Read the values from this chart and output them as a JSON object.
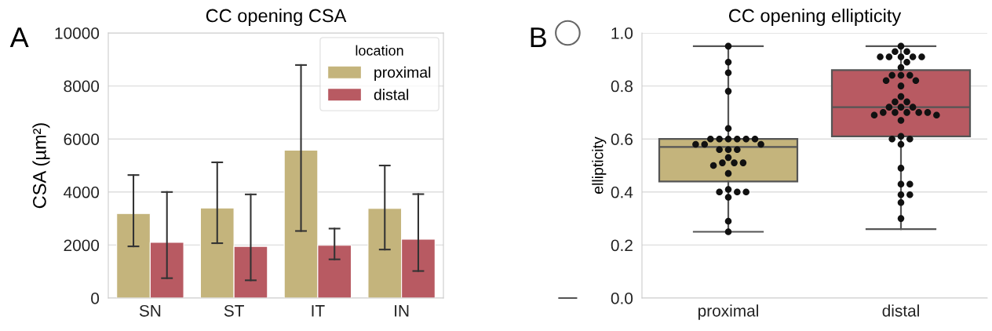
{
  "chart_data": [
    {
      "type": "bar",
      "title": "CC opening CSA",
      "ylabel": "CSA (µm²)",
      "categories": [
        "SN",
        "ST",
        "IT",
        "IN"
      ],
      "series": [
        {
          "name": "proximal",
          "color": "#c4b47c",
          "values": [
            3190,
            3400,
            5580,
            3380
          ],
          "errors": [
            [
              1950,
              4640
            ],
            [
              2070,
              5120
            ],
            [
              2530,
              8790
            ],
            [
              1830,
              5000
            ]
          ]
        },
        {
          "name": "distal",
          "color": "#b85a62",
          "values": [
            2100,
            1950,
            1990,
            2220
          ],
          "errors": [
            [
              750,
              4000
            ],
            [
              670,
              3910
            ],
            [
              1460,
              2620
            ],
            [
              1020,
              3920
            ]
          ]
        }
      ],
      "ylim": [
        0,
        10000
      ],
      "yticks": [
        0,
        2000,
        4000,
        6000,
        8000,
        10000
      ],
      "grid": "y",
      "legend": "top right",
      "legend_title": "location",
      "annotations": [
        "A"
      ]
    },
    {
      "type": "box",
      "title": "CC opening ellipticity",
      "ylabel": "ellipticity",
      "categories": [
        "proximal",
        "distal"
      ],
      "colors": [
        "#c4b47c",
        "#b85a62"
      ],
      "boxes": [
        {
          "low": 0.25,
          "q1": 0.44,
          "median": 0.57,
          "q3": 0.6,
          "high": 0.95
        },
        {
          "low": 0.26,
          "q1": 0.61,
          "median": 0.72,
          "q3": 0.86,
          "high": 0.95
        }
      ],
      "series": [
        {
          "type": "scatter",
          "color": "#111111",
          "x": [
            "proximal",
            "proximal",
            "proximal",
            "proximal",
            "proximal",
            "proximal",
            "proximal",
            "proximal",
            "proximal",
            "proximal",
            "proximal",
            "proximal",
            "proximal",
            "proximal",
            "proximal",
            "proximal",
            "proximal",
            "proximal",
            "proximal",
            "proximal",
            "proximal",
            "proximal",
            "proximal",
            "proximal",
            "proximal",
            "proximal",
            "proximal",
            "proximal",
            "proximal",
            "proximal"
          ],
          "values": [
            0.95,
            0.89,
            0.85,
            0.78,
            0.64,
            0.6,
            0.6,
            0.6,
            0.6,
            0.6,
            0.6,
            0.58,
            0.58,
            0.58,
            0.56,
            0.56,
            0.56,
            0.53,
            0.51,
            0.51,
            0.51,
            0.5,
            0.47,
            0.41,
            0.4,
            0.4,
            0.4,
            0.38,
            0.29,
            0.25
          ]
        },
        {
          "type": "scatter",
          "color": "#111111",
          "x": [
            "distal",
            "distal",
            "distal",
            "distal",
            "distal",
            "distal",
            "distal",
            "distal",
            "distal",
            "distal",
            "distal",
            "distal",
            "distal",
            "distal",
            "distal",
            "distal",
            "distal",
            "distal",
            "distal",
            "distal",
            "distal",
            "distal",
            "distal",
            "distal",
            "distal",
            "distal",
            "distal",
            "distal",
            "distal",
            "distal",
            "distal",
            "distal",
            "distal",
            "distal",
            "distal",
            "distal",
            "distal",
            "distal",
            "distal",
            "distal",
            "distal"
          ],
          "values": [
            0.95,
            0.93,
            0.93,
            0.91,
            0.91,
            0.91,
            0.91,
            0.91,
            0.89,
            0.87,
            0.84,
            0.84,
            0.84,
            0.82,
            0.82,
            0.8,
            0.76,
            0.74,
            0.74,
            0.72,
            0.72,
            0.72,
            0.7,
            0.7,
            0.7,
            0.7,
            0.7,
            0.69,
            0.69,
            0.67,
            0.61,
            0.6,
            0.6,
            0.58,
            0.49,
            0.43,
            0.43,
            0.39,
            0.39,
            0.36,
            0.3
          ]
        }
      ],
      "ylim": [
        0,
        1.0
      ],
      "yticks": [
        {
          "value": 0,
          "label": "0.0"
        },
        0.2,
        0.4,
        0.6,
        0.8,
        {
          "value": 1,
          "label": "1.0"
        }
      ],
      "grid": "y",
      "annotations": [
        "B"
      ]
    }
  ]
}
